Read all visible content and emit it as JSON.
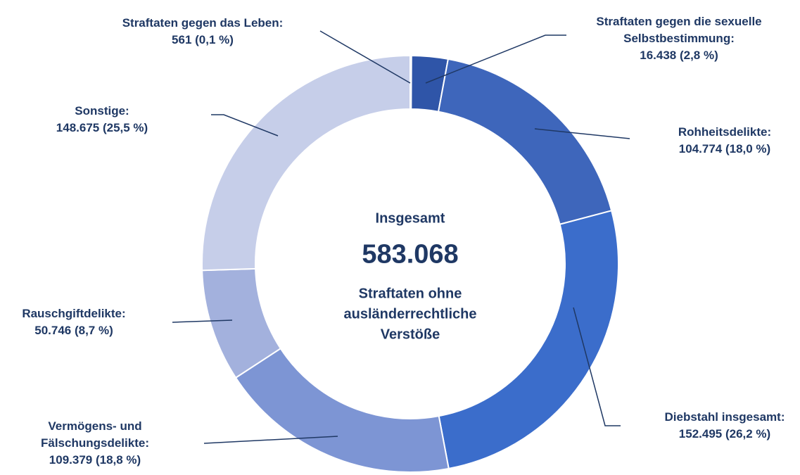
{
  "chart_data": {
    "type": "donut",
    "categories": [
      "Straftaten gegen das Leben:",
      "Straftaten gegen die sexuelle Selbstbestimmung:",
      "Rohheitsdelikte:",
      "Diebstahl insgesamt:",
      "Vermögens- und Fälschungsdelikte:",
      "Rauschgiftdelikte:",
      "Sonstige:"
    ],
    "values": [
      561,
      16438,
      104774,
      152495,
      109379,
      50746,
      148675
    ],
    "value_labels": [
      "561 (0,1 %)",
      "16.438 (2,8 %)",
      "104.774 (18,0 %)",
      "152.495 (26,2 %)",
      "109.379 (18,8 %)",
      "50.746 (8,7 %)",
      "148.675 (25,5 %)"
    ],
    "colors": [
      "#2a4c9c",
      "#2f55a8",
      "#3e66bb",
      "#3b6dcb",
      "#7d95d4",
      "#a3b1dd",
      "#c6cee9"
    ],
    "center_title": "Insgesamt",
    "total": {
      "value": 583068,
      "label": "583.068"
    },
    "center_subtitle": "Straftaten ohne ausländerrechtliche Verstöße"
  }
}
